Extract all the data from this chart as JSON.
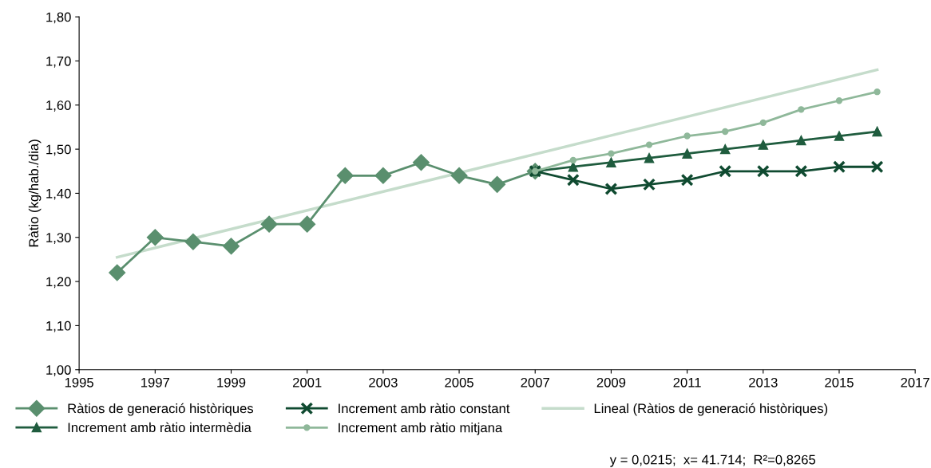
{
  "chart_data": {
    "type": "line",
    "ylabel": "Ràtio (kg/hab./dia)",
    "xlim": [
      1995,
      2017
    ],
    "xticks": [
      1995,
      1997,
      1999,
      2001,
      2003,
      2005,
      2007,
      2009,
      2011,
      2013,
      2015,
      2017
    ],
    "ylim": [
      1.0,
      1.8
    ],
    "yticks": [
      {
        "value": 1.0,
        "label": "1,00"
      },
      {
        "value": 1.1,
        "label": "1,10"
      },
      {
        "value": 1.2,
        "label": "1,20"
      },
      {
        "value": 1.3,
        "label": "1,30"
      },
      {
        "value": 1.4,
        "label": "1,40"
      },
      {
        "value": 1.5,
        "label": "1,50"
      },
      {
        "value": 1.6,
        "label": "1,60"
      },
      {
        "value": 1.7,
        "label": "1,70"
      },
      {
        "value": 1.8,
        "label": "1,80"
      }
    ],
    "grid": false,
    "legend": "bottom",
    "series": [
      {
        "name": "Ràtios de generació històriques",
        "color": "#5a8f6e",
        "marker": "diamond",
        "x": [
          1996,
          1997,
          1998,
          1999,
          2000,
          2001,
          2002,
          2003,
          2004,
          2005,
          2006,
          2007
        ],
        "values": [
          1.22,
          1.3,
          1.29,
          1.28,
          1.33,
          1.33,
          1.44,
          1.44,
          1.47,
          1.44,
          1.42,
          1.45
        ]
      },
      {
        "name": "Increment amb ràtio intermèdia",
        "color": "#1f5c3e",
        "marker": "triangle",
        "x": [
          2007,
          2008,
          2009,
          2010,
          2011,
          2012,
          2013,
          2014,
          2015,
          2016
        ],
        "values": [
          1.45,
          1.46,
          1.47,
          1.48,
          1.49,
          1.5,
          1.51,
          1.52,
          1.53,
          1.54
        ]
      },
      {
        "name": "Increment amb ràtio constant",
        "color": "#0f4a30",
        "marker": "cross",
        "x": [
          2007,
          2008,
          2009,
          2010,
          2011,
          2012,
          2013,
          2014,
          2015,
          2016
        ],
        "values": [
          1.45,
          1.43,
          1.41,
          1.42,
          1.43,
          1.45,
          1.45,
          1.45,
          1.46,
          1.46
        ]
      },
      {
        "name": "Increment amb ràtio mitjana",
        "color": "#8fb89a",
        "marker": "circle",
        "x": [
          2007,
          2008,
          2009,
          2010,
          2011,
          2012,
          2013,
          2014,
          2015,
          2016
        ],
        "values": [
          1.45,
          1.475,
          1.49,
          1.51,
          1.53,
          1.54,
          1.56,
          1.59,
          1.61,
          1.63
        ]
      },
      {
        "name": "Lineal (Ràtios de generació històriques)",
        "color": "#c5dccb",
        "marker": "none",
        "x": [
          1996,
          2016
        ],
        "values": [
          1.255,
          1.68
        ]
      }
    ],
    "annotations": [
      "y = 0,0215;  x= 41.714;  R²=0,8265"
    ]
  }
}
